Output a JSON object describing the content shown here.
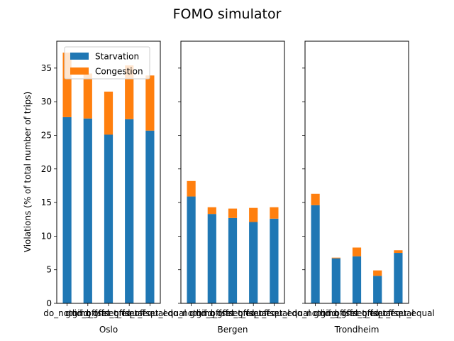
{
  "chart_data": {
    "type": "bar",
    "title": "FOMO simulator",
    "ylabel": "Violations (% of total number of trips)",
    "ylim": [
      0,
      39
    ],
    "yticks": [
      0,
      5,
      10,
      15,
      20,
      25,
      30,
      35
    ],
    "stacked": true,
    "sharey": true,
    "legend": {
      "placement": "top-left",
      "panel": 0
    },
    "categories": [
      "do_nothing",
      "grid_offset",
      "grid_offset_equal",
      "grid_offset_equal",
      "grid_offset_equal"
    ],
    "series_colors": {
      "Starvation": "#1f77b4",
      "Congestion": "#ff7f0e"
    },
    "subplots": [
      {
        "xlabel": "Oslo",
        "series": [
          {
            "name": "Starvation",
            "values": [
              27.7,
              27.5,
              25.1,
              27.4,
              25.7
            ]
          },
          {
            "name": "Congestion",
            "values": [
              9.6,
              6.7,
              6.4,
              8.0,
              8.2
            ]
          }
        ]
      },
      {
        "xlabel": "Bergen",
        "series": [
          {
            "name": "Starvation",
            "values": [
              15.9,
              13.3,
              12.7,
              12.1,
              12.6
            ]
          },
          {
            "name": "Congestion",
            "values": [
              2.3,
              1.0,
              1.4,
              2.1,
              1.7
            ]
          }
        ]
      },
      {
        "xlabel": "Trondheim",
        "series": [
          {
            "name": "Starvation",
            "values": [
              14.6,
              6.7,
              7.0,
              4.1,
              7.5
            ]
          },
          {
            "name": "Congestion",
            "values": [
              1.7,
              0.1,
              1.3,
              0.8,
              0.4
            ]
          }
        ]
      }
    ]
  }
}
